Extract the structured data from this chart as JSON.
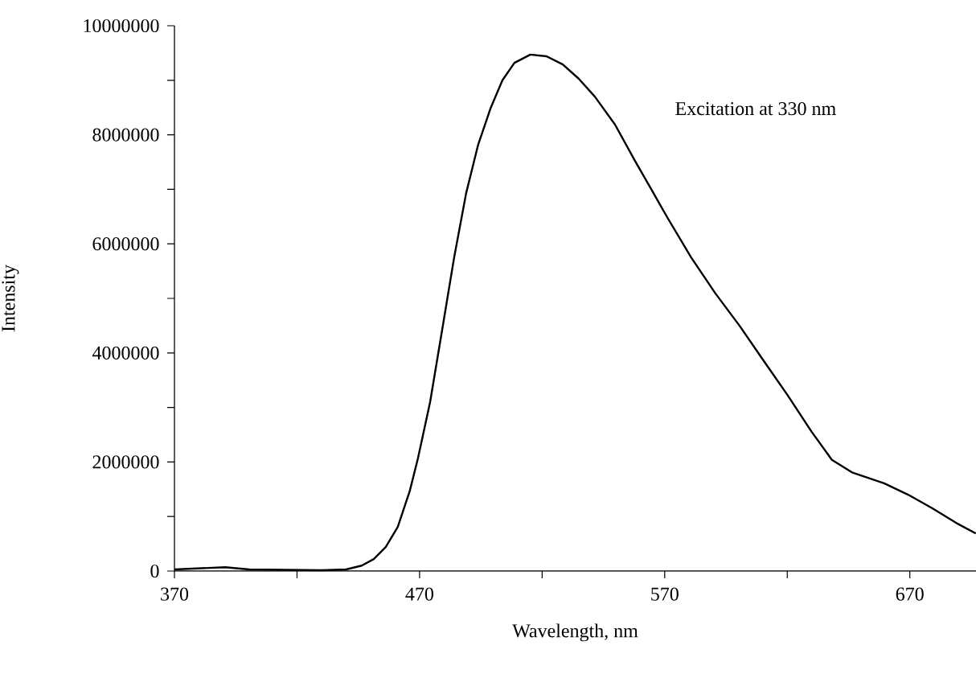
{
  "chart_data": {
    "type": "line",
    "xlabel": "Wavelength, nm",
    "ylabel": "Intensity",
    "annotations": [
      "Excitation at 330 nm"
    ],
    "xlim": [
      370,
      697
    ],
    "ylim": [
      0,
      10000000
    ],
    "xticks": [
      370,
      {
        "value": 420,
        "label": null
      },
      470,
      {
        "value": 520,
        "label": null
      },
      570,
      {
        "value": 620,
        "label": null
      },
      670
    ],
    "yticks": [
      0,
      {
        "value": 1000000,
        "label": null
      },
      2000000,
      {
        "value": 3000000,
        "label": null
      },
      4000000,
      {
        "value": 5000000,
        "label": null
      },
      6000000,
      {
        "value": 7000000,
        "label": null
      },
      8000000,
      {
        "value": 9000000,
        "label": null
      },
      10000000
    ],
    "series": [
      {
        "color": "#000000",
        "x": [
          370,
          390.7,
          400.5,
          430,
          440,
          446.4,
          451.3,
          456.2,
          461.1,
          466,
          469.3,
          474.3,
          479.2,
          484.1,
          489,
          493.9,
          498.9,
          503.8,
          508.7,
          515.2,
          521.8,
          528.4,
          534.9,
          541.5,
          549.7,
          557.9,
          564.4,
          571,
          580.8,
          590.7,
          600.5,
          610.3,
          620.2,
          630,
          638.2,
          646.4,
          659.5,
          669.3,
          679.2,
          689,
          696.9
        ],
        "values": [
          30000,
          70000,
          30000,
          15000,
          30000,
          100000,
          220000,
          440000,
          810000,
          1470000,
          2060000,
          3100000,
          4420000,
          5750000,
          6930000,
          7820000,
          8480000,
          9000000,
          9320000,
          9470000,
          9440000,
          9290000,
          9030000,
          8700000,
          8190000,
          7520000,
          7010000,
          6490000,
          5750000,
          5090000,
          4500000,
          3860000,
          3220000,
          2550000,
          2040000,
          1810000,
          1610000,
          1400000,
          1150000,
          880000,
          690000
        ]
      }
    ]
  }
}
